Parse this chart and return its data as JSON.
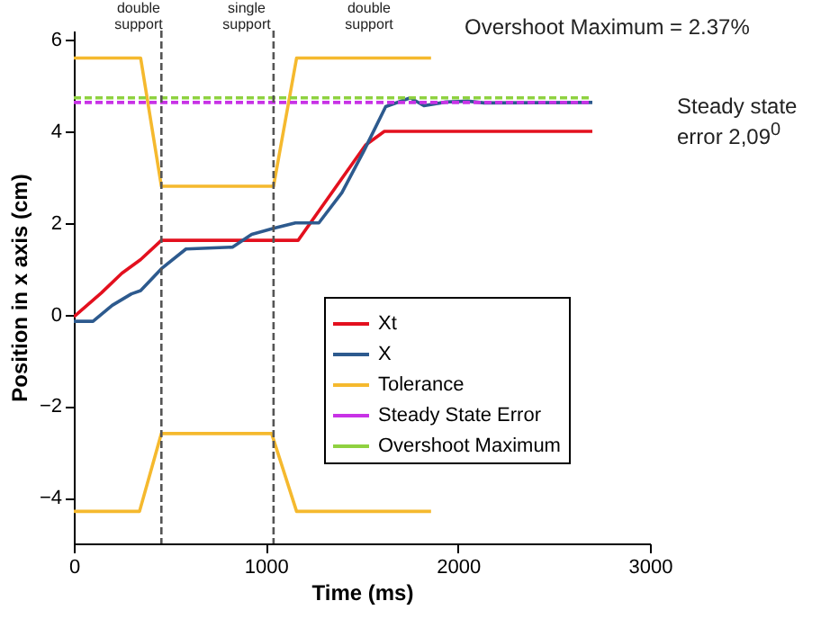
{
  "chart_data": {
    "type": "line",
    "xlabel": "Time (ms)",
    "ylabel": "Position in x axis (cm)",
    "xlim": [
      0,
      3000
    ],
    "xticks": [
      0,
      1000,
      2000,
      3000
    ],
    "ylim": [
      -5,
      6.2
    ],
    "yticks": [
      -4,
      -2,
      0,
      2,
      4,
      6
    ],
    "grid": false,
    "legend": "bottom right",
    "marker": "none",
    "series": [
      {
        "name": "Xt",
        "color": "#e3101e",
        "x": [
          0,
          143,
          250,
          348,
          456,
          1168,
          1519,
          1617,
          2700
        ],
        "values": [
          -0.05,
          0.47,
          0.9,
          1.2,
          1.62,
          1.62,
          3.7,
          4.0,
          4.0
        ]
      },
      {
        "name": "X",
        "color": "#2d5a8e",
        "x": [
          0,
          100,
          200,
          300,
          348,
          456,
          584,
          826,
          926,
          1040,
          1154,
          1276,
          1396,
          1510,
          1624,
          1752,
          1823,
          1937,
          2051,
          2137,
          2700
        ],
        "values": [
          -0.15,
          -0.15,
          0.2,
          0.45,
          0.52,
          1.0,
          1.43,
          1.47,
          1.75,
          1.88,
          2.0,
          2.0,
          2.66,
          3.57,
          4.54,
          4.73,
          4.56,
          4.64,
          4.66,
          4.62,
          4.63
        ]
      },
      {
        "name": "Tolerance",
        "color": "#f5b92e",
        "x": [
          0,
          348,
          456,
          1040,
          1160,
          1860,
          null,
          0,
          342,
          456,
          1030,
          1160,
          1860
        ],
        "values": [
          5.6,
          5.6,
          2.8,
          2.8,
          5.6,
          5.6,
          null,
          -4.3,
          -4.3,
          -2.6,
          -2.6,
          -4.3,
          -4.3
        ]
      },
      {
        "name": "Steady State Error",
        "color": "#c832e6",
        "x": [
          0,
          2700
        ],
        "values": [
          4.63,
          4.63
        ],
        "line_style": "dashed"
      },
      {
        "name": "Overshoot Maximum",
        "color": "#8fd140",
        "x": [
          0,
          2700
        ],
        "values": [
          4.73,
          4.73
        ],
        "line_style": "dashed"
      }
    ],
    "ref_lines": [
      {
        "axis": "x",
        "value": 456,
        "color": "#555555",
        "line_style": "dashed"
      },
      {
        "axis": "x",
        "value": 1040,
        "color": "#555555",
        "line_style": "dashed"
      }
    ],
    "annotations": [
      "double support",
      "single support",
      "double support",
      "Overshoot Maximum = 2.37%",
      "Steady state error 2,09$^{0}$"
    ]
  }
}
